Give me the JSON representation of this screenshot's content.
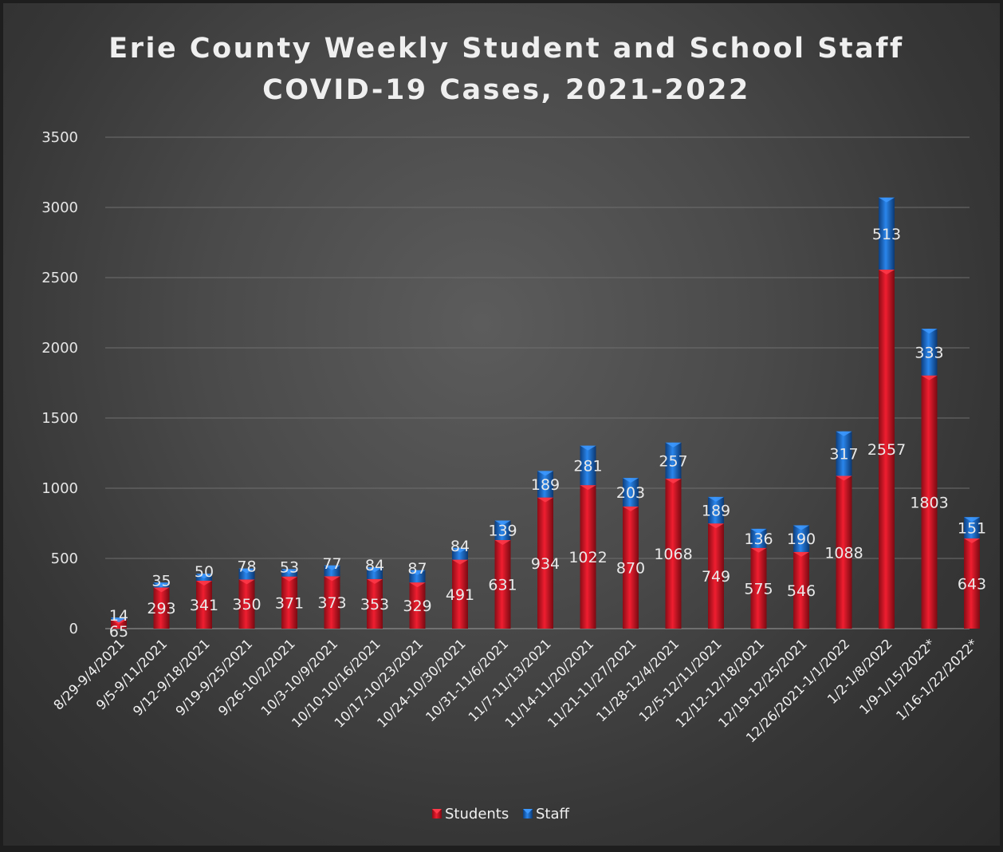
{
  "chart_data": {
    "type": "bar",
    "stacked": true,
    "title": [
      "Erie County Weekly Student and School Staff",
      "COVID-19 Cases, 2021-2022"
    ],
    "categories": [
      "8/29-9/4/2021",
      "9/5-9/11/2021",
      "9/12-9/18/2021",
      "9/19-9/25/2021",
      "9/26-10/2/2021",
      "10/3-10/9/2021",
      "10/10-10/16/2021",
      "10/17-10/23/2021",
      "10/24-10/30/2021",
      "10/31-11/6/2021",
      "11/7-11/13/2021",
      "11/14-11/20/2021",
      "11/21-11/27/2021",
      "11/28-12/4/2021",
      "12/5-12/11/2021",
      "12/12-12/18/2021",
      "12/19-12/25/2021",
      "12/26/2021-1/1/2022",
      "1/2-1/8/2022",
      "1/9-1/15/2022*",
      "1/16-1/22/2022*"
    ],
    "series": [
      {
        "name": "Students",
        "color": "#e8192c",
        "values": [
          65,
          293,
          341,
          350,
          371,
          373,
          353,
          329,
          491,
          631,
          934,
          1022,
          870,
          1068,
          749,
          575,
          546,
          1088,
          2557,
          1803,
          643
        ],
        "labels": [
          "65",
          "293",
          "341",
          "350",
          "371",
          "373",
          "353",
          "329",
          "491",
          "631",
          "934",
          "1022",
          "870",
          "1068",
          "749",
          "575",
          "546",
          "1088",
          "2557",
          "1803",
          "643"
        ]
      },
      {
        "name": "Staff",
        "color": "#1f6fd1",
        "values": [
          14,
          35,
          50,
          78,
          53,
          77,
          84,
          87,
          84,
          139,
          189,
          281,
          203,
          257,
          189,
          136,
          190,
          317,
          513,
          333,
          151
        ],
        "labels": [
          "14",
          "35",
          "50",
          "78",
          "53",
          "77",
          "84",
          "87",
          "84",
          "139",
          "189",
          "281",
          "203",
          "257",
          "189",
          "136",
          "190",
          "317",
          "513",
          "333",
          "151"
        ]
      }
    ],
    "ylim": [
      0,
      3500
    ],
    "yticks": [
      0,
      500,
      1000,
      1500,
      2000,
      2500,
      3000,
      3500
    ],
    "ytick_labels": [
      "0",
      "500",
      "1000",
      "1500",
      "2000",
      "2500",
      "3000",
      "3500"
    ],
    "grid": true,
    "legend_position": "bottom"
  }
}
